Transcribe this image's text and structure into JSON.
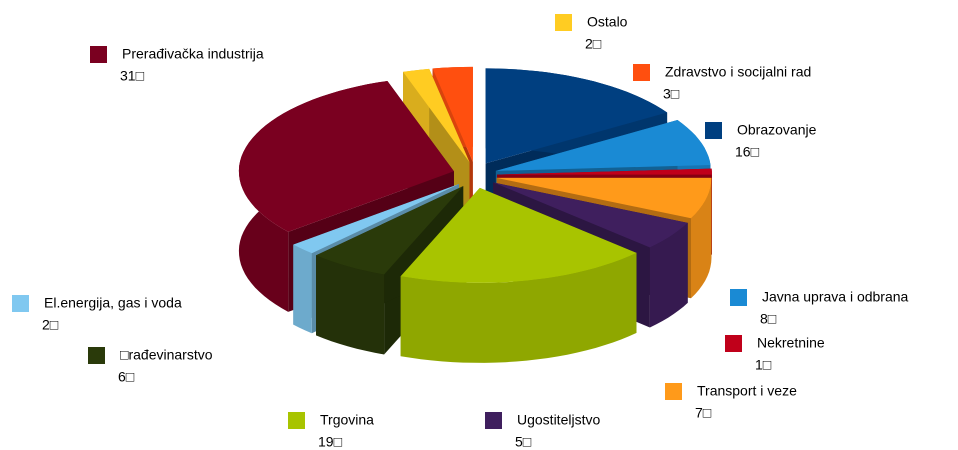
{
  "chart_data": {
    "type": "pie3d",
    "categories": [
      "Obrazovanje",
      "Javna uprava i odbrana",
      "Nekretnine",
      "Transport i veze",
      "Ugostiteljstvo",
      "Trgovina",
      "□rađevinarstvo",
      "El.energija, gas i voda",
      "Prerađivačka industrija",
      "Ostalo",
      "Zdravstvo i socijalni rad"
    ],
    "values": [
      16,
      8,
      1,
      7,
      5,
      19,
      6,
      2,
      31,
      2,
      3
    ],
    "value_labels": [
      "16□",
      "8□",
      "1□",
      "7□",
      "5□",
      "19□",
      "6□",
      "2□",
      "31□",
      "2□",
      "3□"
    ],
    "colors": [
      "#003f80",
      "#1a8ad4",
      "#c0001a",
      "#ff9a1a",
      "#3f1f5e",
      "#a8c400",
      "#2a3a0a",
      "#80c8f0",
      "#7a0020",
      "#ffcc22",
      "#ff4f0f"
    ]
  }
}
